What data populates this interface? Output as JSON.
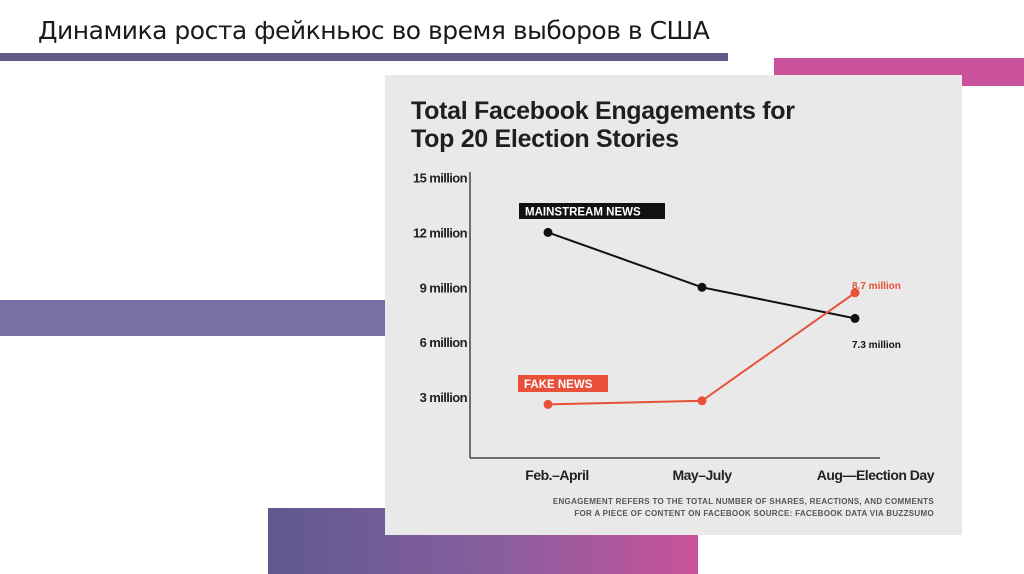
{
  "slide_title": "Динамика роста фейкньюс во время выборов в США",
  "chart_data": {
    "type": "line",
    "title_line1": "Total Facebook Engagements for",
    "title_line2": "Top 20 Election Stories",
    "categories": [
      "Feb.–April",
      "May–July",
      "Aug—Election Day"
    ],
    "y_ticks": [
      {
        "value": 15,
        "label": "15 million"
      },
      {
        "value": 12,
        "label": "12 million"
      },
      {
        "value": 9,
        "label": "9 million"
      },
      {
        "value": 6,
        "label": "6 million"
      },
      {
        "value": 3,
        "label": "3 million"
      }
    ],
    "ylim": [
      0,
      15
    ],
    "yunit": "million",
    "series": [
      {
        "name": "MAINSTREAM NEWS",
        "color": "#111111",
        "values": [
          12,
          9,
          7.3
        ],
        "end_label": "7.3 million"
      },
      {
        "name": "FAKE NEWS",
        "color": "#e8503a",
        "values": [
          2.6,
          2.8,
          8.7
        ],
        "end_label": "8.7 million"
      }
    ],
    "footnote_line1": "ENGAGEMENT REFERS TO THE TOTAL NUMBER OF SHARES, REACTIONS, AND COMMENTS",
    "footnote_line2": "FOR A PIECE OF CONTENT ON FACEBOOK SOURCE: FACEBOOK DATA VIA BUZZSUMO"
  }
}
